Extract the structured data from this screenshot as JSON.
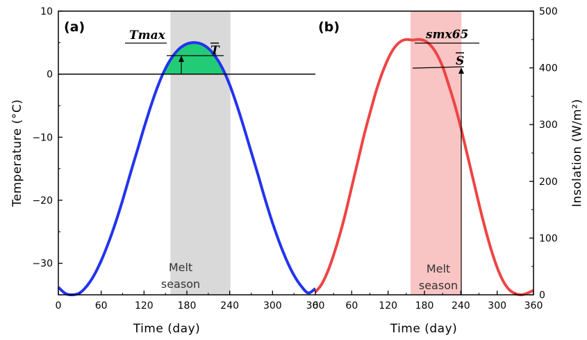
{
  "chart_data": [
    {
      "type": "line",
      "panel_label": "(a)",
      "xlabel": "Time (day)",
      "ylabel": "Temperature (°C)",
      "xlim": [
        0,
        360
      ],
      "ylim": [
        -35,
        10
      ],
      "xticks": [
        0,
        60,
        120,
        180,
        240,
        300,
        360
      ],
      "yticks": [
        -30,
        -20,
        -10,
        0,
        10
      ],
      "xtick_labels": [
        "0",
        "60",
        "120",
        "180",
        "240",
        "300",
        "360"
      ],
      "ytick_labels": [
        "−30",
        "−20",
        "−10",
        "0",
        "10"
      ],
      "series": [
        {
          "color": "#2233ee",
          "x": [
            0,
            10,
            20,
            30,
            40,
            50,
            60,
            70,
            80,
            90,
            100,
            110,
            120,
            130,
            140,
            150,
            160,
            170,
            180,
            190,
            200,
            210,
            220,
            230,
            240,
            250,
            260,
            270,
            280,
            290,
            300,
            310,
            320,
            330,
            340,
            350,
            360
          ],
          "y": [
            -33.8,
            -34.8,
            -35.0,
            -34.7,
            -33.6,
            -31.9,
            -29.6,
            -26.8,
            -23.6,
            -20.0,
            -16.1,
            -12.3,
            -8.5,
            -4.9,
            -1.7,
            0.9,
            2.8,
            4.1,
            4.8,
            5.0,
            4.8,
            4.1,
            2.8,
            0.9,
            -1.7,
            -4.9,
            -8.5,
            -12.3,
            -16.1,
            -20.0,
            -23.6,
            -26.8,
            -29.6,
            -31.9,
            -33.6,
            -34.7,
            -34.0
          ]
        }
      ],
      "reference_line_y": 0,
      "melt_season": {
        "start": 157,
        "end": 241,
        "color": "#d9d9d9"
      },
      "positive_fill_color": "#22cc77",
      "annotations": {
        "t_max": "Tmax",
        "t_mean": "T",
        "season": [
          "Melt",
          "season"
        ]
      }
    },
    {
      "type": "line",
      "panel_label": "(b)",
      "xlabel": "Time (day)",
      "ylabel": "Insolation (W/m²)",
      "xlim": [
        0,
        360
      ],
      "ylim": [
        0,
        500
      ],
      "xticks": [
        0,
        60,
        120,
        180,
        240,
        300,
        360
      ],
      "yticks": [
        0,
        100,
        200,
        300,
        400,
        500
      ],
      "xtick_labels": [
        "0",
        "60",
        "120",
        "180",
        "240",
        "300",
        "360"
      ],
      "ytick_labels": [
        "0",
        "100",
        "200",
        "300",
        "400",
        "500"
      ],
      "series": [
        {
          "color": "#ee4444",
          "x": [
            0,
            10,
            20,
            30,
            40,
            50,
            60,
            70,
            80,
            90,
            100,
            110,
            120,
            130,
            140,
            150,
            160,
            170,
            180,
            190,
            200,
            210,
            220,
            230,
            240,
            250,
            260,
            270,
            280,
            290,
            300,
            310,
            320,
            330,
            340,
            350,
            360
          ],
          "y": [
            5,
            18,
            40,
            70,
            105,
            145,
            190,
            235,
            280,
            320,
            358,
            390,
            416,
            435,
            446,
            450,
            449,
            450,
            448,
            440,
            425,
            402,
            370,
            335,
            295,
            250,
            205,
            160,
            118,
            80,
            48,
            24,
            9,
            2,
            0,
            3,
            8
          ]
        }
      ],
      "melt_season": {
        "start": 157,
        "end": 241,
        "color": "#f9c4c4",
        "mean_level": 400
      },
      "annotations": {
        "smx": "smx65",
        "s_mean": "S",
        "season": [
          "Melt",
          "season"
        ]
      }
    }
  ]
}
